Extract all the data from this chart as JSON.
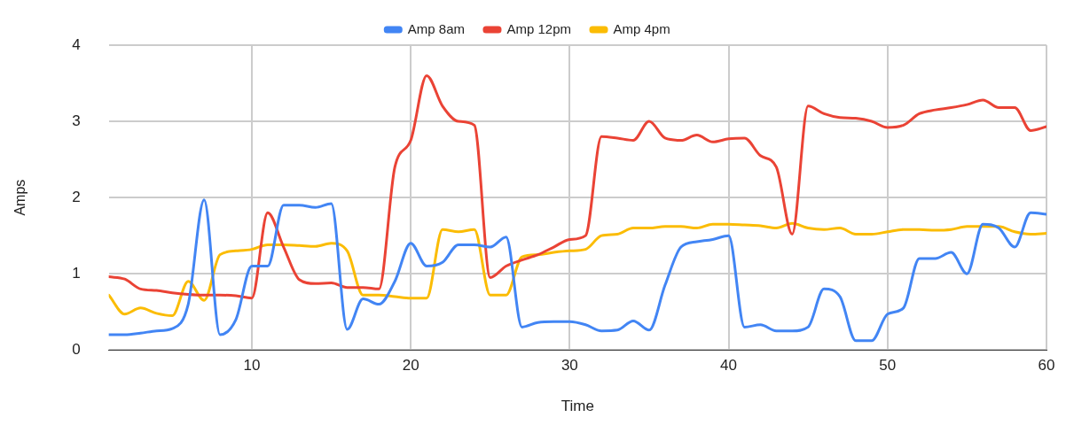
{
  "chart_data": {
    "type": "line",
    "xlabel": "Time",
    "ylabel": "Amps",
    "x": [
      1,
      2,
      3,
      4,
      5,
      6,
      7,
      8,
      9,
      10,
      11,
      12,
      13,
      14,
      15,
      16,
      17,
      18,
      19,
      20,
      21,
      22,
      23,
      24,
      25,
      26,
      27,
      28,
      29,
      30,
      31,
      32,
      33,
      34,
      35,
      36,
      37,
      38,
      39,
      40,
      41,
      42,
      43,
      44,
      45,
      46,
      47,
      48,
      49,
      50,
      51,
      52,
      53,
      54,
      55,
      56,
      57,
      58,
      59,
      60
    ],
    "series": [
      {
        "name": "Amp 8am",
        "color": "#4285f4",
        "values": [
          0.2,
          0.2,
          0.22,
          0.25,
          0.28,
          0.6,
          1.97,
          0.2,
          0.4,
          1.1,
          1.1,
          1.9,
          1.9,
          1.87,
          1.92,
          0.27,
          0.67,
          0.6,
          0.9,
          1.4,
          1.1,
          1.15,
          1.38,
          1.38,
          1.35,
          1.48,
          0.3,
          0.36,
          0.37,
          0.37,
          0.33,
          0.25,
          0.26,
          0.38,
          0.26,
          0.85,
          1.35,
          1.42,
          1.45,
          1.5,
          0.3,
          0.33,
          0.25,
          0.25,
          0.3,
          0.8,
          0.7,
          0.12,
          0.12,
          0.47,
          0.55,
          1.2,
          1.2,
          1.28,
          1.0,
          1.65,
          1.6,
          1.35,
          1.8,
          1.78
        ]
      },
      {
        "name": "Amp 12pm",
        "color": "#ea4335",
        "values": [
          0.96,
          0.93,
          0.8,
          0.78,
          0.75,
          0.73,
          0.72,
          0.72,
          0.71,
          0.68,
          1.8,
          1.35,
          0.92,
          0.87,
          0.88,
          0.82,
          0.82,
          0.8,
          2.4,
          2.75,
          3.6,
          3.2,
          3.0,
          2.95,
          0.95,
          1.1,
          1.18,
          1.25,
          1.35,
          1.45,
          1.5,
          2.8,
          2.78,
          2.75,
          3.0,
          2.78,
          2.75,
          2.82,
          2.73,
          2.77,
          2.78,
          2.55,
          2.4,
          1.52,
          3.2,
          3.1,
          3.05,
          3.04,
          3.0,
          2.92,
          2.95,
          3.1,
          3.15,
          3.18,
          3.22,
          3.28,
          3.18,
          3.18,
          2.88,
          2.93
        ]
      },
      {
        "name": "Amp 4pm",
        "color": "#fbbc04",
        "values": [
          0.72,
          0.47,
          0.55,
          0.48,
          0.45,
          0.9,
          0.65,
          1.25,
          1.3,
          1.32,
          1.38,
          1.38,
          1.37,
          1.36,
          1.4,
          1.3,
          0.72,
          0.72,
          0.7,
          0.68,
          0.68,
          1.58,
          1.55,
          1.58,
          0.72,
          0.72,
          1.22,
          1.25,
          1.28,
          1.3,
          1.32,
          1.5,
          1.52,
          1.6,
          1.6,
          1.62,
          1.62,
          1.6,
          1.65,
          1.65,
          1.64,
          1.63,
          1.6,
          1.66,
          1.6,
          1.58,
          1.6,
          1.52,
          1.52,
          1.55,
          1.58,
          1.58,
          1.57,
          1.58,
          1.62,
          1.62,
          1.62,
          1.55,
          1.52,
          1.53
        ]
      }
    ],
    "xlim": [
      1,
      60
    ],
    "xticks": [
      10,
      20,
      30,
      40,
      50,
      60
    ],
    "ylim": [
      0,
      4
    ],
    "yticks": [
      0,
      1,
      2,
      3,
      4
    ],
    "grid": true,
    "legend": "top",
    "marker": "none",
    "line_style": "solid"
  }
}
